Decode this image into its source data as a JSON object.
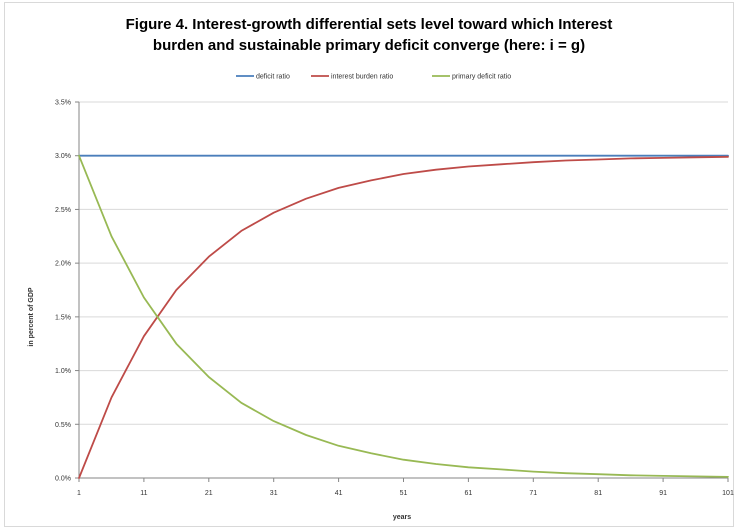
{
  "chart_data": {
    "type": "line",
    "title_lines": [
      "Figure 4. Interest-growth differential sets level toward which Interest",
      "burden and sustainable primary deficit converge  (here: i = g)"
    ],
    "xlabel": "years",
    "ylabel": "in percent of GDP",
    "xlim": [
      1,
      101
    ],
    "ylim": [
      0,
      3.5
    ],
    "x_ticks": [
      1,
      11,
      21,
      31,
      41,
      51,
      61,
      71,
      81,
      91,
      101
    ],
    "y_ticks": [
      0,
      0.5,
      1.0,
      1.5,
      2.0,
      2.5,
      3.0,
      3.5
    ],
    "y_tick_labels": [
      "0.0%",
      "0.5%",
      "1.0%",
      "1.5%",
      "2.0%",
      "2.5%",
      "3.0%",
      "3.5%"
    ],
    "grid": "horizontal",
    "legend_position": "top",
    "series": [
      {
        "name": "deficit ratio",
        "color": "#4a7ebb",
        "x": [
          1,
          11,
          21,
          31,
          41,
          51,
          61,
          71,
          81,
          91,
          101
        ],
        "values": [
          3.0,
          3.0,
          3.0,
          3.0,
          3.0,
          3.0,
          3.0,
          3.0,
          3.0,
          3.0,
          3.0
        ]
      },
      {
        "name": "interest burden ratio",
        "color": "#be4b48",
        "x": [
          1,
          6,
          11,
          16,
          21,
          26,
          31,
          36,
          41,
          46,
          51,
          56,
          61,
          66,
          71,
          76,
          81,
          86,
          91,
          96,
          101
        ],
        "values": [
          0.0,
          0.75,
          1.32,
          1.75,
          2.06,
          2.3,
          2.47,
          2.6,
          2.7,
          2.77,
          2.83,
          2.87,
          2.9,
          2.92,
          2.94,
          2.955,
          2.965,
          2.975,
          2.98,
          2.985,
          2.99
        ]
      },
      {
        "name": "primary deficit ratio",
        "color": "#98b954",
        "x": [
          1,
          6,
          11,
          16,
          21,
          26,
          31,
          36,
          41,
          46,
          51,
          56,
          61,
          66,
          71,
          76,
          81,
          86,
          91,
          96,
          101
        ],
        "values": [
          3.0,
          2.25,
          1.68,
          1.25,
          0.94,
          0.7,
          0.53,
          0.4,
          0.3,
          0.23,
          0.17,
          0.13,
          0.1,
          0.08,
          0.06,
          0.045,
          0.035,
          0.025,
          0.02,
          0.015,
          0.01
        ]
      }
    ]
  }
}
